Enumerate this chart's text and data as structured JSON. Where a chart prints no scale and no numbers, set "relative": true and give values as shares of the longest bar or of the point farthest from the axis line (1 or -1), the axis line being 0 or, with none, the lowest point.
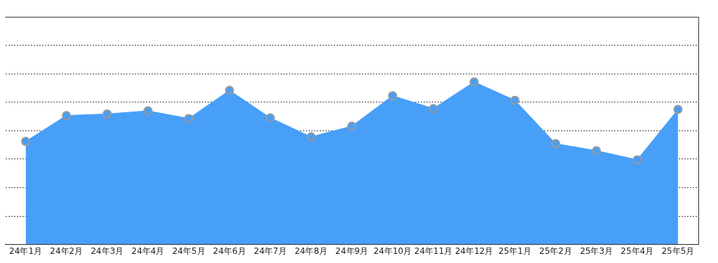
{
  "chart_data": {
    "type": "area",
    "relative": true,
    "grid": "y",
    "marker": "circle",
    "categories": [
      "24年1月",
      "24年2月",
      "24年3月",
      "24年4月",
      "24年5月",
      "24年6月",
      "24年7月",
      "24年8月",
      "24年9月",
      "24年10月",
      "24年11月",
      "24年12月",
      "25年1月",
      "25年2月",
      "25年3月",
      "25年4月",
      "25年5月"
    ],
    "series": [
      {
        "color": "#479ff8",
        "values": [
          0.634,
          0.793,
          0.803,
          0.822,
          0.775,
          0.948,
          0.779,
          0.662,
          0.728,
          0.915,
          0.836,
          1,
          0.887,
          0.62,
          0.577,
          0.521,
          0.831
        ]
      }
    ]
  }
}
